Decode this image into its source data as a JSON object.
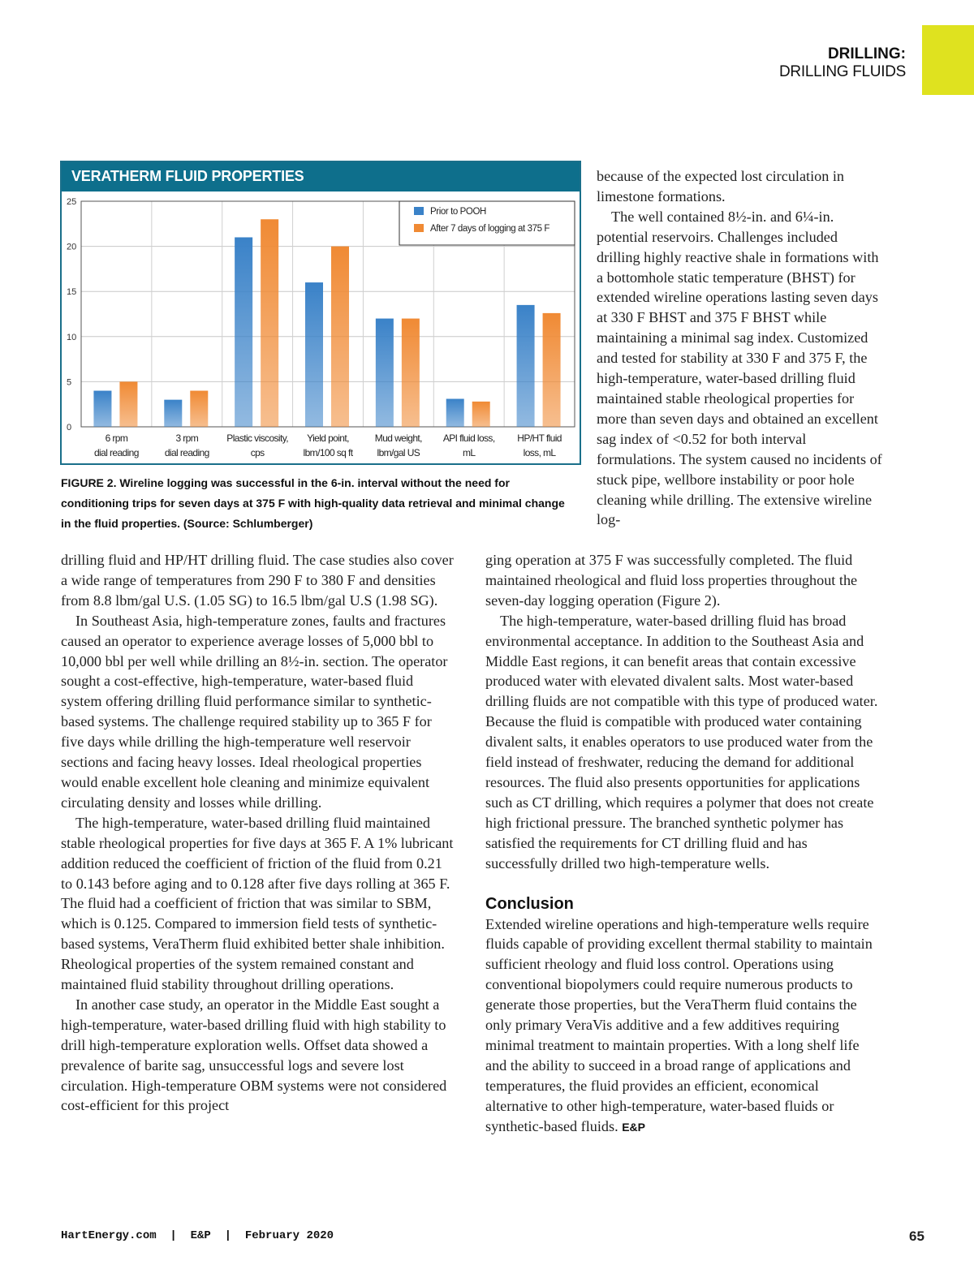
{
  "section": {
    "category": "DRILLING:",
    "subcategory": "DRILLING FLUIDS"
  },
  "figure": {
    "title": "VERATHERM FLUID PROPERTIES",
    "caption": "FIGURE 2. Wireline logging was successful in the 6-in. interval without the need for conditioning trips for seven days at 375 F with high-quality data retrieval and minimal change in the fluid properties. (Source: Schlumberger)"
  },
  "chart_data": {
    "type": "bar",
    "title": "VERATHERM FLUID PROPERTIES",
    "categories": [
      [
        "6 rpm",
        "dial reading"
      ],
      [
        "3 rpm",
        "dial reading"
      ],
      [
        "Plastic viscosity,",
        "cps"
      ],
      [
        "Yield point,",
        "lbm/100 sq ft"
      ],
      [
        "Mud weight,",
        "lbm/gal US"
      ],
      [
        "API fluid loss,",
        "mL"
      ],
      [
        "HP/HT fluid",
        "loss, mL"
      ]
    ],
    "series": [
      {
        "name": "Prior to POOH",
        "color": "#3a82c8",
        "values": [
          4,
          3,
          21,
          16,
          12,
          3.1,
          13.5
        ]
      },
      {
        "name": "After 7 days of logging at 375 F",
        "color": "#f08a34",
        "values": [
          5,
          4,
          23,
          20,
          12,
          2.8,
          12.6
        ]
      }
    ],
    "ylim": [
      0,
      25
    ],
    "yticks": [
      0,
      5,
      10,
      15,
      20,
      25
    ],
    "grid": true,
    "legend": "top-right"
  },
  "right_top": [
    "because of the expected lost circulation in limestone formations.",
    "The well contained 8½-in. and 6¼-in. potential reservoirs. Challenges included drilling highly reactive shale in formations with a bottomhole static temperature (BHST) for extended wireline operations lasting seven days at 330 F BHST and 375 F BHST while maintaining a minimal sag index. Customized and tested for stability at 330 F and 375 F, the high-temperature, water-based drilling fluid maintained stable rheological properties for more than seven days and obtained an excellent sag index of <0.52 for both interval formulations. The system caused no incidents of stuck pipe, wellbore instability or poor hole cleaning while drilling. The extensive wireline log-"
  ],
  "left_col": [
    "drilling fluid and HP/HT drilling fluid. The case studies also cover a wide range of temperatures from 290 F to 380 F and densities from 8.8 lbm/gal U.S. (1.05 SG) to 16.5 lbm/gal U.S (1.98 SG).",
    "In Southeast Asia, high-temperature zones, faults and fractures caused an operator to experience average losses of 5,000 bbl to 10,000 bbl per well while drilling an 8½-in. section. The operator sought a cost-effective, high-temperature, water-based fluid system offering drilling fluid performance similar to synthetic-based systems. The challenge required stability up to 365 F for five days while drilling the high-temperature well reservoir sections and facing heavy losses. Ideal rheological properties would enable excellent hole cleaning and minimize equivalent circulating density and losses while drilling.",
    "The high-temperature, water-based drilling fluid maintained stable rheological properties for five days at 365 F. A 1% lubricant addition reduced the coefficient of friction of the fluid from 0.21 to 0.143 before aging and to 0.128 after five days rolling at 365 F. The fluid had a coefficient of friction that was similar to SBM, which is 0.125. Compared to immersion field tests of synthetic-based systems, VeraTherm fluid exhibited better shale inhibition. Rheological properties of the system remained constant and maintained fluid stability throughout drilling operations.",
    "In another case study, an operator in the Middle East sought a high-temperature, water-based drilling fluid with high stability to drill high-temperature exploration wells. Offset data showed a prevalence of barite sag, unsuccessful logs and severe lost circulation. High-temperature OBM systems were not considered cost-efficient for this project"
  ],
  "right_bottom": [
    "ging operation at 375 F was successfully completed. The fluid maintained rheological and fluid loss properties throughout the seven-day logging operation (Figure 2).",
    "The high-temperature, water-based drilling fluid has broad environmental acceptance. In addition to the Southeast Asia and Middle East regions, it can benefit areas that contain excessive produced water with elevated divalent salts. Most water-based drilling fluids are not compatible with this type of produced water. Because the fluid is compatible with produced water containing divalent salts, it enables operators to use produced water from the field instead of freshwater, reducing the demand for additional resources. The fluid also presents opportunities for applications such as CT drilling, which requires a polymer that does not create high frictional pressure. The branched synthetic polymer has satisfied the requirements for CT drilling fluid and has successfully drilled two high-temperature wells."
  ],
  "conclusion": {
    "heading": "Conclusion",
    "text": "Extended wireline operations and high-temperature wells require fluids capable of providing excellent thermal stability to maintain sufficient rheology and fluid loss control. Operations using conventional biopolymers could require numerous products to generate those properties, but the VeraTherm fluid contains the only primary VeraVis additive and a few additives requiring minimal treatment to maintain properties. With a long shelf life and the ability to succeed in a broad range of applications and temperatures, the fluid provides an efficient, economical alternative to other high-temperature, water-based fluids or synthetic-based fluids.",
    "end_mark": "E&P"
  },
  "footer": {
    "text": "HartEnergy.com  |  E&P  |  February 2020",
    "page": "65"
  }
}
